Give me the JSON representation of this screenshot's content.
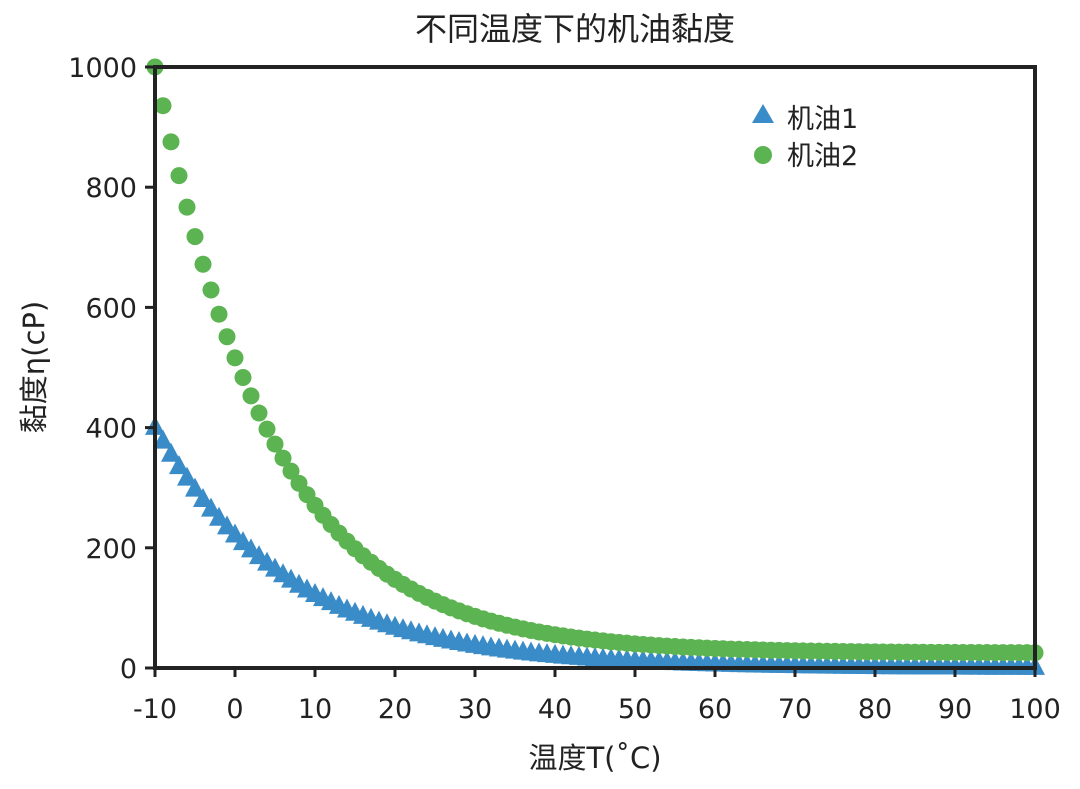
{
  "chart_data": {
    "type": "scatter",
    "title": "不同温度下的机油黏度",
    "xlabel": "温度T(˚C)",
    "ylabel": "黏度η(cP)",
    "xlim": [
      -10,
      100
    ],
    "ylim": [
      0,
      1000
    ],
    "xticks": [
      "-10",
      "0",
      "10",
      "20",
      "30",
      "40",
      "50",
      "60",
      "70",
      "80",
      "90",
      "100"
    ],
    "yticks": [
      "0",
      "200",
      "400",
      "600",
      "800",
      "1000"
    ],
    "grid": false,
    "legend_position": "top-right",
    "series": [
      {
        "name": "机油1",
        "marker": "triangle",
        "color": "#3a8cc8",
        "x": [
          -10,
          -9,
          -8,
          -7,
          -6,
          -5,
          -4,
          -3,
          -2,
          -1,
          0,
          1,
          2,
          3,
          4,
          5,
          6,
          7,
          8,
          9,
          10,
          11,
          12,
          13,
          14,
          15,
          16,
          17,
          18,
          19,
          20,
          21,
          22,
          23,
          24,
          25,
          26,
          27,
          28,
          29,
          30,
          31,
          32,
          33,
          34,
          35,
          36,
          37,
          38,
          39,
          40,
          41,
          42,
          43,
          44,
          45,
          46,
          47,
          48,
          49,
          50,
          51,
          52,
          53,
          54,
          55,
          56,
          57,
          58,
          59,
          60,
          61,
          62,
          63,
          64,
          65,
          66,
          67,
          68,
          69,
          70,
          71,
          72,
          73,
          74,
          75,
          76,
          77,
          78,
          79,
          80,
          81,
          82,
          83,
          84,
          85,
          86,
          87,
          88,
          89,
          90,
          91,
          92,
          93,
          94,
          95,
          96,
          97,
          98,
          99,
          100
        ],
        "y": [
          400.0,
          377.0,
          355.2,
          334.7,
          315.4,
          297.2,
          280.0,
          263.9,
          248.7,
          234.3,
          220.8,
          208.1,
          196.1,
          184.8,
          174.1,
          164.1,
          154.6,
          145.7,
          137.3,
          129.4,
          121.9,
          114.9,
          108.3,
          102.0,
          96.1,
          90.6,
          85.4,
          80.4,
          75.8,
          71.4,
          67.3,
          63.4,
          59.8,
          56.3,
          53.1,
          50.0,
          47.1,
          44.4,
          41.9,
          39.5,
          37.2,
          35.0,
          33.0,
          31.1,
          29.3,
          27.6,
          26.0,
          24.5,
          23.1,
          21.8,
          20.5,
          19.3,
          18.2,
          17.2,
          16.2,
          15.3,
          14.4,
          13.5,
          12.7,
          12.0,
          11.3,
          10.7,
          10.1,
          9.5,
          8.9,
          8.4,
          7.9,
          7.5,
          7.0,
          6.6,
          6.2,
          5.9,
          5.6,
          5.2,
          4.9,
          4.6,
          4.4,
          4.1,
          3.9,
          3.7,
          3.5,
          3.3,
          3.1,
          2.9,
          2.7,
          2.6,
          2.4,
          2.3,
          2.2,
          2.0,
          1.9,
          1.8,
          1.7,
          1.6,
          1.5,
          1.4,
          1.3,
          1.3,
          1.2,
          1.1,
          1.1,
          1.0,
          0.9,
          0.9,
          0.8,
          0.8,
          0.7,
          0.7,
          0.7,
          0.6,
          0.6
        ]
      },
      {
        "name": "机油2",
        "marker": "circle",
        "color": "#5cb352",
        "x": [
          -10,
          -9,
          -8,
          -7,
          -6,
          -5,
          -4,
          -3,
          -2,
          -1,
          0,
          1,
          2,
          3,
          4,
          5,
          6,
          7,
          8,
          9,
          10,
          11,
          12,
          13,
          14,
          15,
          16,
          17,
          18,
          19,
          20,
          21,
          22,
          23,
          24,
          25,
          26,
          27,
          28,
          29,
          30,
          31,
          32,
          33,
          34,
          35,
          36,
          37,
          38,
          39,
          40,
          41,
          42,
          43,
          44,
          45,
          46,
          47,
          48,
          49,
          50,
          51,
          52,
          53,
          54,
          55,
          56,
          57,
          58,
          59,
          60,
          61,
          62,
          63,
          64,
          65,
          66,
          67,
          68,
          69,
          70,
          71,
          72,
          73,
          74,
          75,
          76,
          77,
          78,
          79,
          80,
          81,
          82,
          83,
          84,
          85,
          86,
          87,
          88,
          89,
          90,
          91,
          92,
          93,
          94,
          95,
          96,
          97,
          98,
          99,
          100
        ],
        "y": [
          1000.0,
          935.6,
          875.5,
          819.3,
          766.8,
          717.7,
          671.8,
          628.9,
          588.7,
          551.2,
          516.1,
          483.4,
          452.8,
          424.2,
          397.5,
          372.6,
          349.3,
          327.6,
          307.3,
          288.4,
          270.7,
          254.2,
          238.8,
          224.4,
          211.0,
          198.5,
          186.8,
          175.9,
          165.7,
          156.2,
          147.4,
          139.1,
          131.4,
          124.2,
          117.5,
          111.3,
          105.5,
          100.1,
          95.0,
          90.3,
          85.9,
          81.8,
          78.0,
          74.4,
          71.1,
          68.0,
          65.1,
          62.4,
          59.9,
          57.6,
          55.4,
          53.4,
          51.5,
          49.7,
          48.0,
          46.5,
          45.1,
          43.7,
          42.5,
          41.3,
          40.2,
          39.2,
          38.2,
          37.3,
          36.5,
          35.7,
          35.0,
          34.3,
          33.7,
          33.1,
          32.5,
          32.0,
          31.5,
          31.1,
          30.7,
          30.3,
          29.9,
          29.6,
          29.3,
          29.0,
          28.7,
          28.4,
          28.2,
          28.0,
          27.8,
          27.6,
          27.4,
          27.2,
          27.1,
          26.9,
          26.8,
          26.7,
          26.6,
          26.5,
          26.4,
          26.3,
          26.2,
          26.1,
          26.0,
          26.0,
          25.9,
          25.8,
          25.8,
          25.7,
          25.7,
          25.6,
          25.6,
          25.5,
          25.5,
          25.5,
          25.4
        ]
      }
    ]
  }
}
